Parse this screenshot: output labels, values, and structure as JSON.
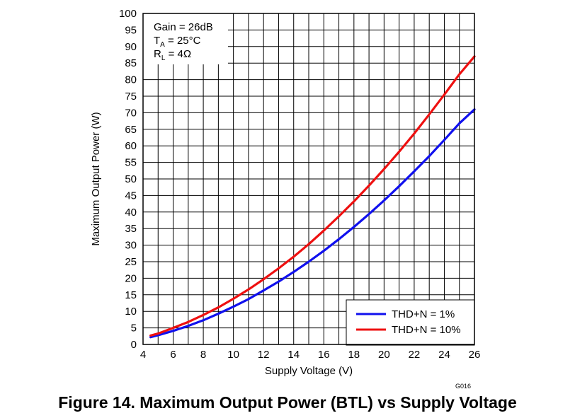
{
  "figure_caption": "Figure 14. Maximum Output Power (BTL) vs Supply Voltage",
  "figure_code": "G016",
  "chart_data": {
    "type": "line",
    "xlabel": "Supply Voltage (V)",
    "ylabel": "Maximum Output Power (W)",
    "xlim": [
      4,
      26
    ],
    "ylim": [
      0,
      100
    ],
    "x_ticks": [
      "4",
      "6",
      "8",
      "10",
      "12",
      "14",
      "16",
      "18",
      "20",
      "22",
      "24",
      "26"
    ],
    "y_ticks": [
      "0",
      "5",
      "10",
      "15",
      "20",
      "25",
      "30",
      "35",
      "40",
      "45",
      "50",
      "55",
      "60",
      "65",
      "70",
      "75",
      "80",
      "85",
      "90",
      "95",
      "100"
    ],
    "grid": true,
    "x_grid_step": 1,
    "y_grid_step": 5,
    "annotation": {
      "gain": "Gain = 26dB",
      "ta_main": "T",
      "ta_sub": "A",
      "ta_rest": " = 25°C",
      "rl_main": "R",
      "rl_sub": "L",
      "rl_rest": " = 4Ω"
    },
    "legend_position": "bottom-right",
    "series": [
      {
        "name": "THD+N = 1%",
        "color": "#1010ee",
        "x": [
          4.5,
          5,
          6,
          7,
          8,
          9,
          10,
          11,
          12,
          13,
          14,
          15,
          16,
          17,
          18,
          19,
          20,
          21,
          22,
          23,
          24,
          25,
          26
        ],
        "y": [
          2.2,
          2.8,
          4.1,
          5.6,
          7.3,
          9.3,
          11.4,
          13.7,
          16.3,
          19.0,
          21.9,
          25.0,
          28.3,
          31.8,
          35.5,
          39.4,
          43.5,
          47.8,
          52.3,
          56.9,
          61.8,
          66.8,
          71.0
        ]
      },
      {
        "name": "THD+N = 10%",
        "color": "#ee1010",
        "x": [
          4.5,
          5,
          6,
          7,
          8,
          9,
          10,
          11,
          12,
          13,
          14,
          15,
          16,
          17,
          18,
          19,
          20,
          21,
          22,
          23,
          24,
          25,
          26
        ],
        "y": [
          2.7,
          3.3,
          5.0,
          6.8,
          8.9,
          11.2,
          13.8,
          16.6,
          19.7,
          23.0,
          26.5,
          30.3,
          34.4,
          38.7,
          43.2,
          48.0,
          53.0,
          58.2,
          63.7,
          69.5,
          75.5,
          81.6,
          87.0
        ]
      }
    ]
  }
}
